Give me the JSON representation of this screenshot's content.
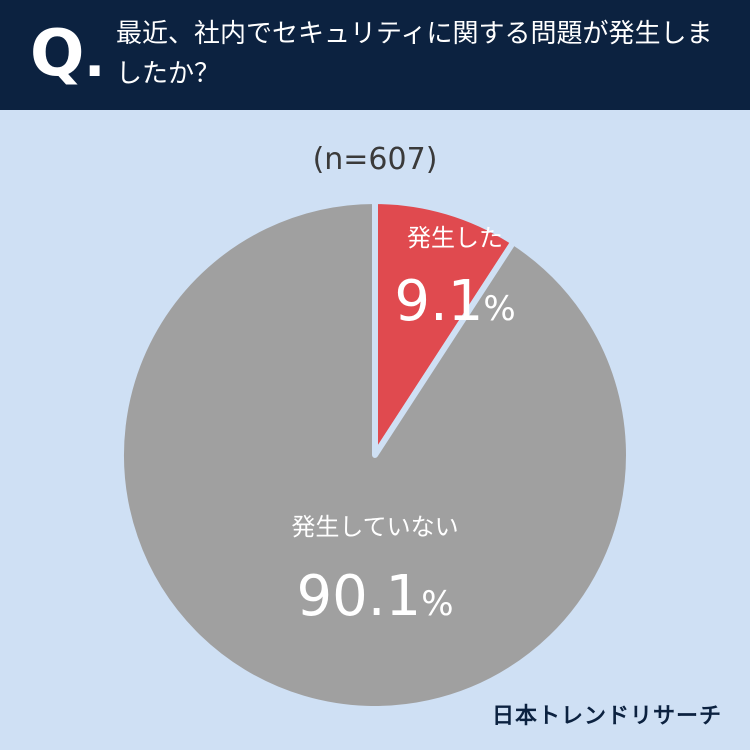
{
  "header": {
    "q_label": "Q",
    "question": "最近、社内でセキュリティに関する問題が発生しましたか？"
  },
  "sample_size": "(n=607)",
  "brand": "日本トレンドリサーチ",
  "chart_data": {
    "type": "pie",
    "title": "最近、社内でセキュリティに関する問題が発生しましたか？",
    "n": 607,
    "start": "12 o'clock, clockwise",
    "slices": [
      {
        "label": "発生した",
        "value": 9.1,
        "display": "9.1",
        "unit": "%",
        "color": "#e04a4f"
      },
      {
        "label": "発生していない",
        "value": 90.1,
        "display": "90.1",
        "unit": "%",
        "color": "#a0a0a0"
      }
    ]
  }
}
